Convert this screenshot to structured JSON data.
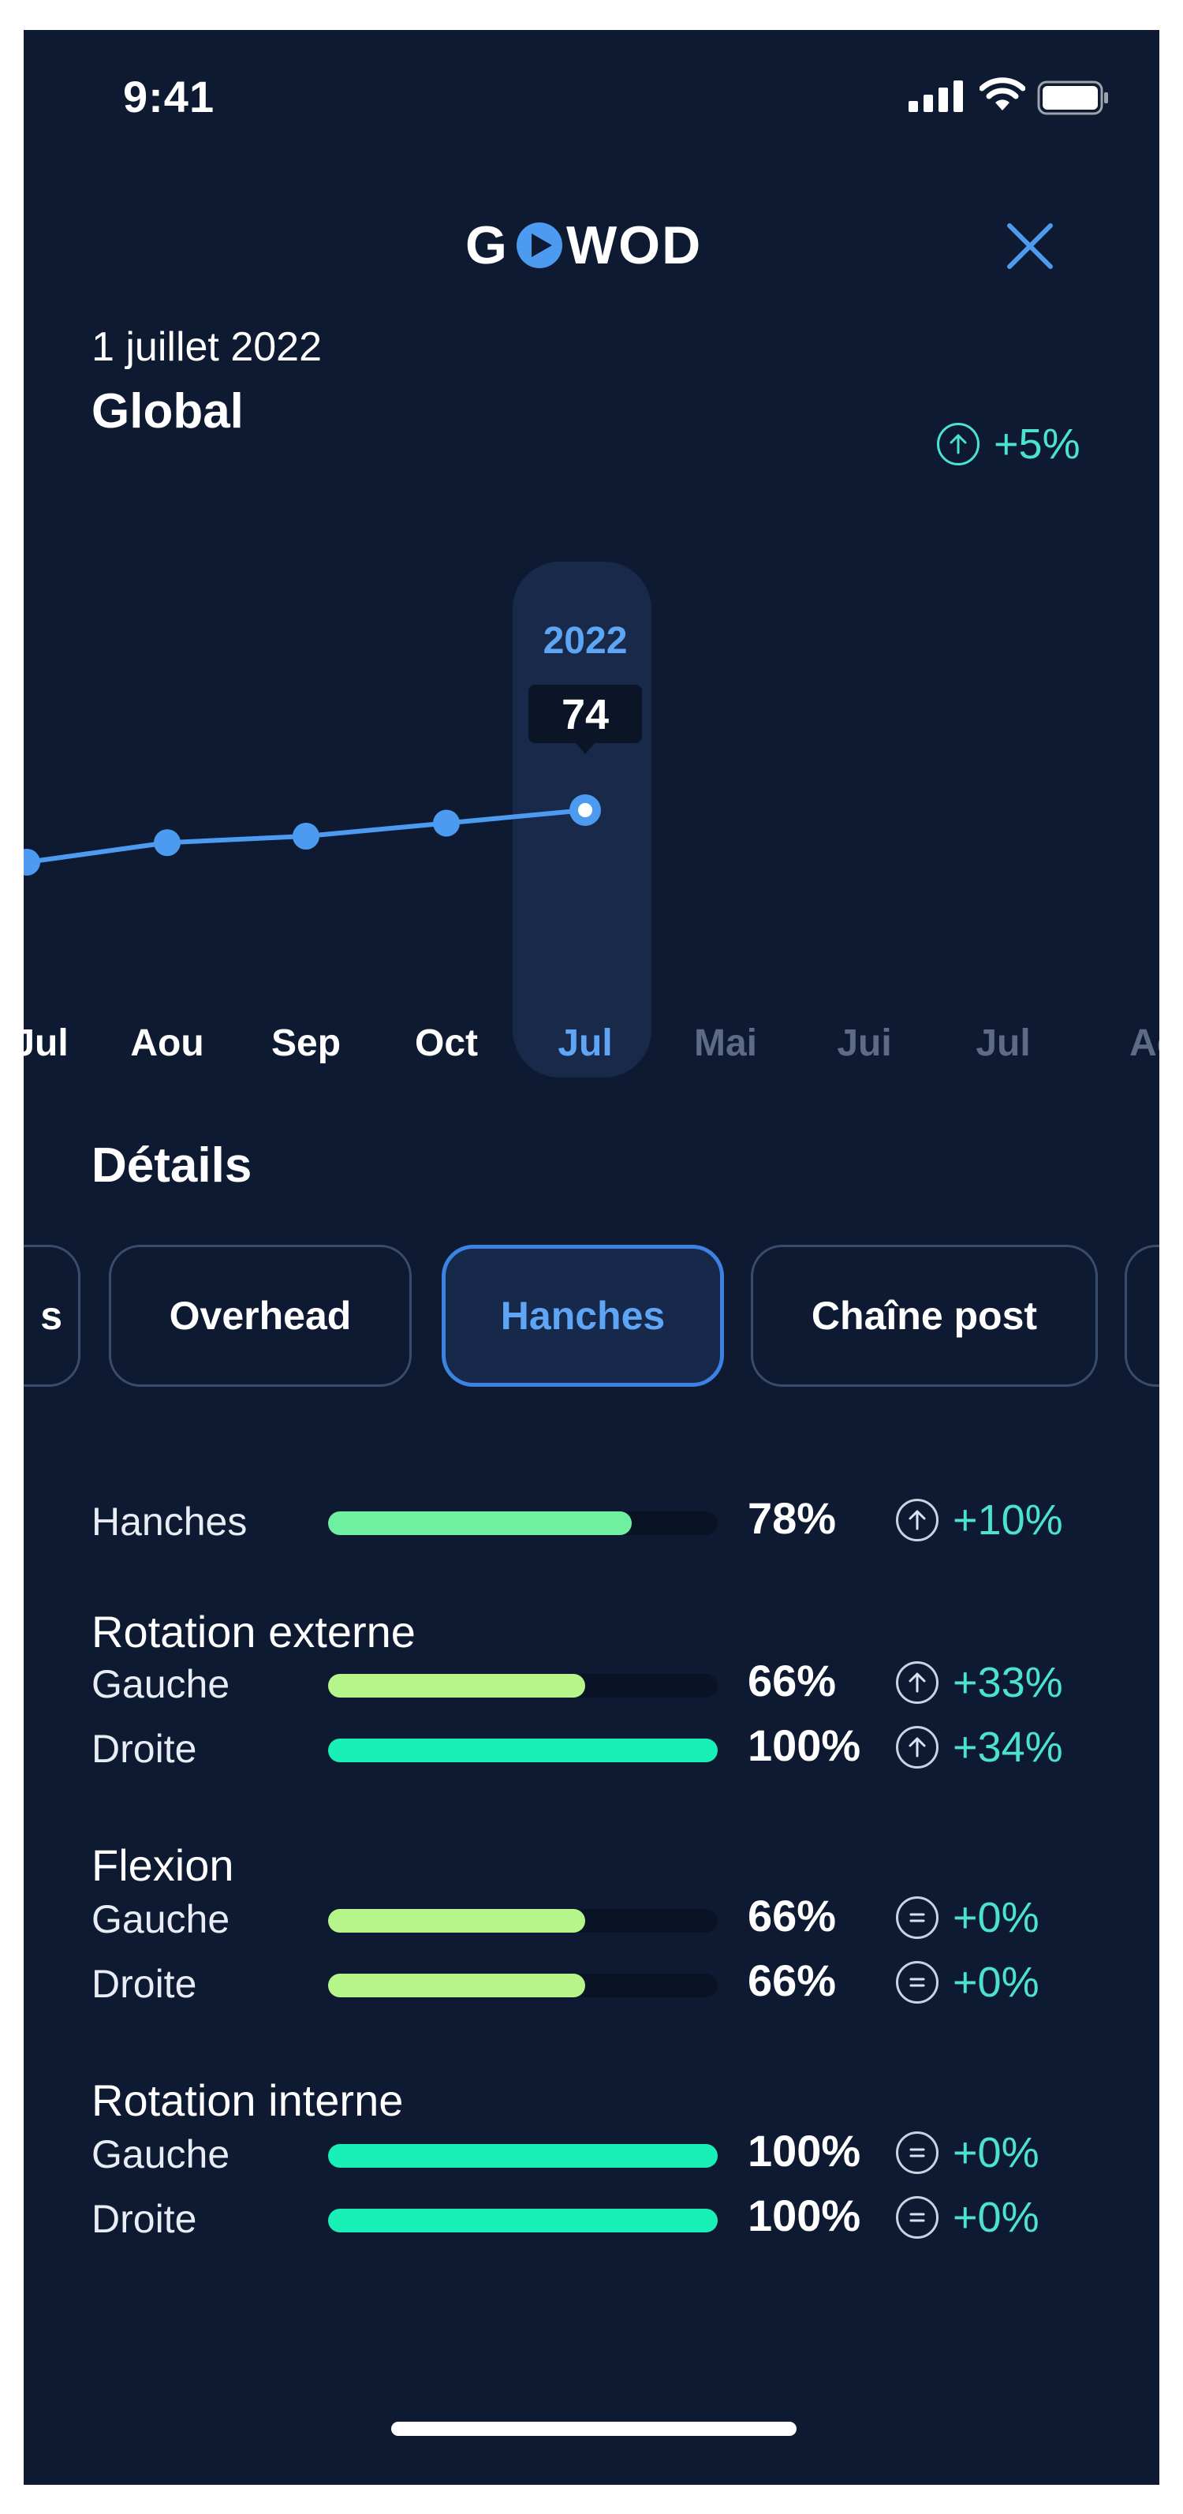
{
  "status_bar": {
    "time": "9:41"
  },
  "header": {
    "logo_text": "GOWOD",
    "close_icon": "close-icon"
  },
  "summary": {
    "date": "1 juillet 2022",
    "title": "Global",
    "trend": "+5%",
    "trend_icon": "arrow-up-circle-icon"
  },
  "chart_data": {
    "type": "line",
    "categories": [
      "Jul",
      "Aou",
      "Sep",
      "Oct",
      "Jul",
      "Mai",
      "Jui",
      "Jul",
      "Ao"
    ],
    "values": [
      70,
      71.5,
      72,
      73,
      74,
      null,
      null,
      null,
      null
    ],
    "selected_index": 4,
    "selected_year": "2022",
    "selected_value": "74",
    "ylim": [
      60,
      90
    ],
    "colors": {
      "line": "#4c9bf0",
      "muted_label": "#5d6b84",
      "active_label": "#5ea6f5"
    }
  },
  "details": {
    "title": "Détails",
    "tabs": [
      {
        "label": "s",
        "active": false
      },
      {
        "label": "Overhead",
        "active": false
      },
      {
        "label": "Hanches",
        "active": true
      },
      {
        "label": "Chaîne post",
        "active": false
      },
      {
        "label": "",
        "active": false
      }
    ],
    "rows": {
      "hanches": {
        "label": "Hanches",
        "value": 0.78,
        "pct": "78%",
        "delta": "+10%",
        "icon": "arrow-up-circle-icon",
        "color": "#6ff0a0"
      },
      "rot_ext_title": "Rotation externe",
      "rot_ext_gauche": {
        "label": "Gauche",
        "value": 0.66,
        "pct": "66%",
        "delta": "+33%",
        "icon": "arrow-up-circle-icon",
        "color": "#b6f58a"
      },
      "rot_ext_droite": {
        "label": "Droite",
        "value": 1.0,
        "pct": "100%",
        "delta": "+34%",
        "icon": "arrow-up-circle-icon",
        "color": "#18f0b8"
      },
      "flexion_title": "Flexion",
      "flexion_gauche": {
        "label": "Gauche",
        "value": 0.66,
        "pct": "66%",
        "delta": "+0%",
        "icon": "equal-circle-icon",
        "color": "#b6f58a"
      },
      "flexion_droite": {
        "label": "Droite",
        "value": 0.66,
        "pct": "66%",
        "delta": "+0%",
        "icon": "equal-circle-icon",
        "color": "#b6f58a"
      },
      "rot_int_title": "Rotation interne",
      "rot_int_gauche": {
        "label": "Gauche",
        "value": 1.0,
        "pct": "100%",
        "delta": "+0%",
        "icon": "equal-circle-icon",
        "color": "#18f0b8"
      },
      "rot_int_droite": {
        "label": "Droite",
        "value": 1.0,
        "pct": "100%",
        "delta": "+0%",
        "icon": "equal-circle-icon",
        "color": "#18f0b8"
      }
    }
  }
}
